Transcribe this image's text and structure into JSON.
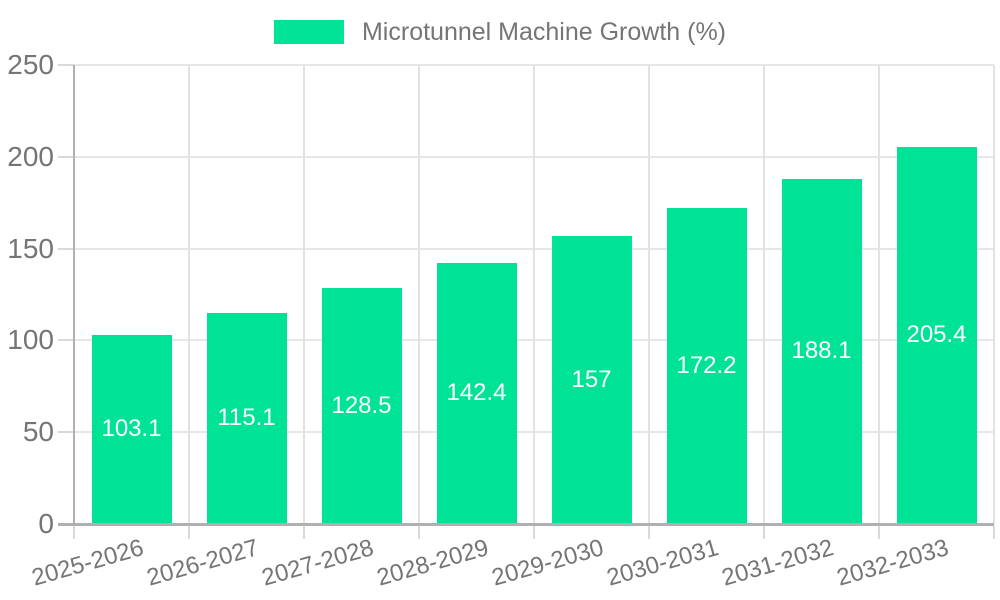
{
  "chart_data": {
    "type": "bar",
    "title": "Microtunnel Machine Growth (%)",
    "legend_position": "top",
    "categories": [
      "2025-2026",
      "2026-2027",
      "2027-2028",
      "2028-2029",
      "2029-2030",
      "2030-2031",
      "2031-2032",
      "2032-2033"
    ],
    "series": [
      {
        "name": "Microtunnel Machine Growth (%)",
        "values": [
          103.1,
          115.1,
          128.5,
          142.4,
          157,
          172.2,
          188.1,
          205.4
        ],
        "labels": [
          "103.1",
          "115.1",
          "128.5",
          "142.4",
          "157",
          "172.2",
          "188.1",
          "205.4"
        ]
      }
    ],
    "xlabel": "",
    "ylabel": "",
    "ylim": [
      0,
      250
    ],
    "yticks": [
      0,
      50,
      100,
      150,
      200,
      250
    ],
    "grid": true,
    "colors": {
      "bar": "#00E396",
      "axis_text": "#757575",
      "value_label": "#ffffff",
      "grid_line": "#e7e7e7",
      "vgrid_line": "#e2e2e2",
      "axis_line": "#b0b0b0",
      "tick_line": "#d9d9d9"
    }
  }
}
